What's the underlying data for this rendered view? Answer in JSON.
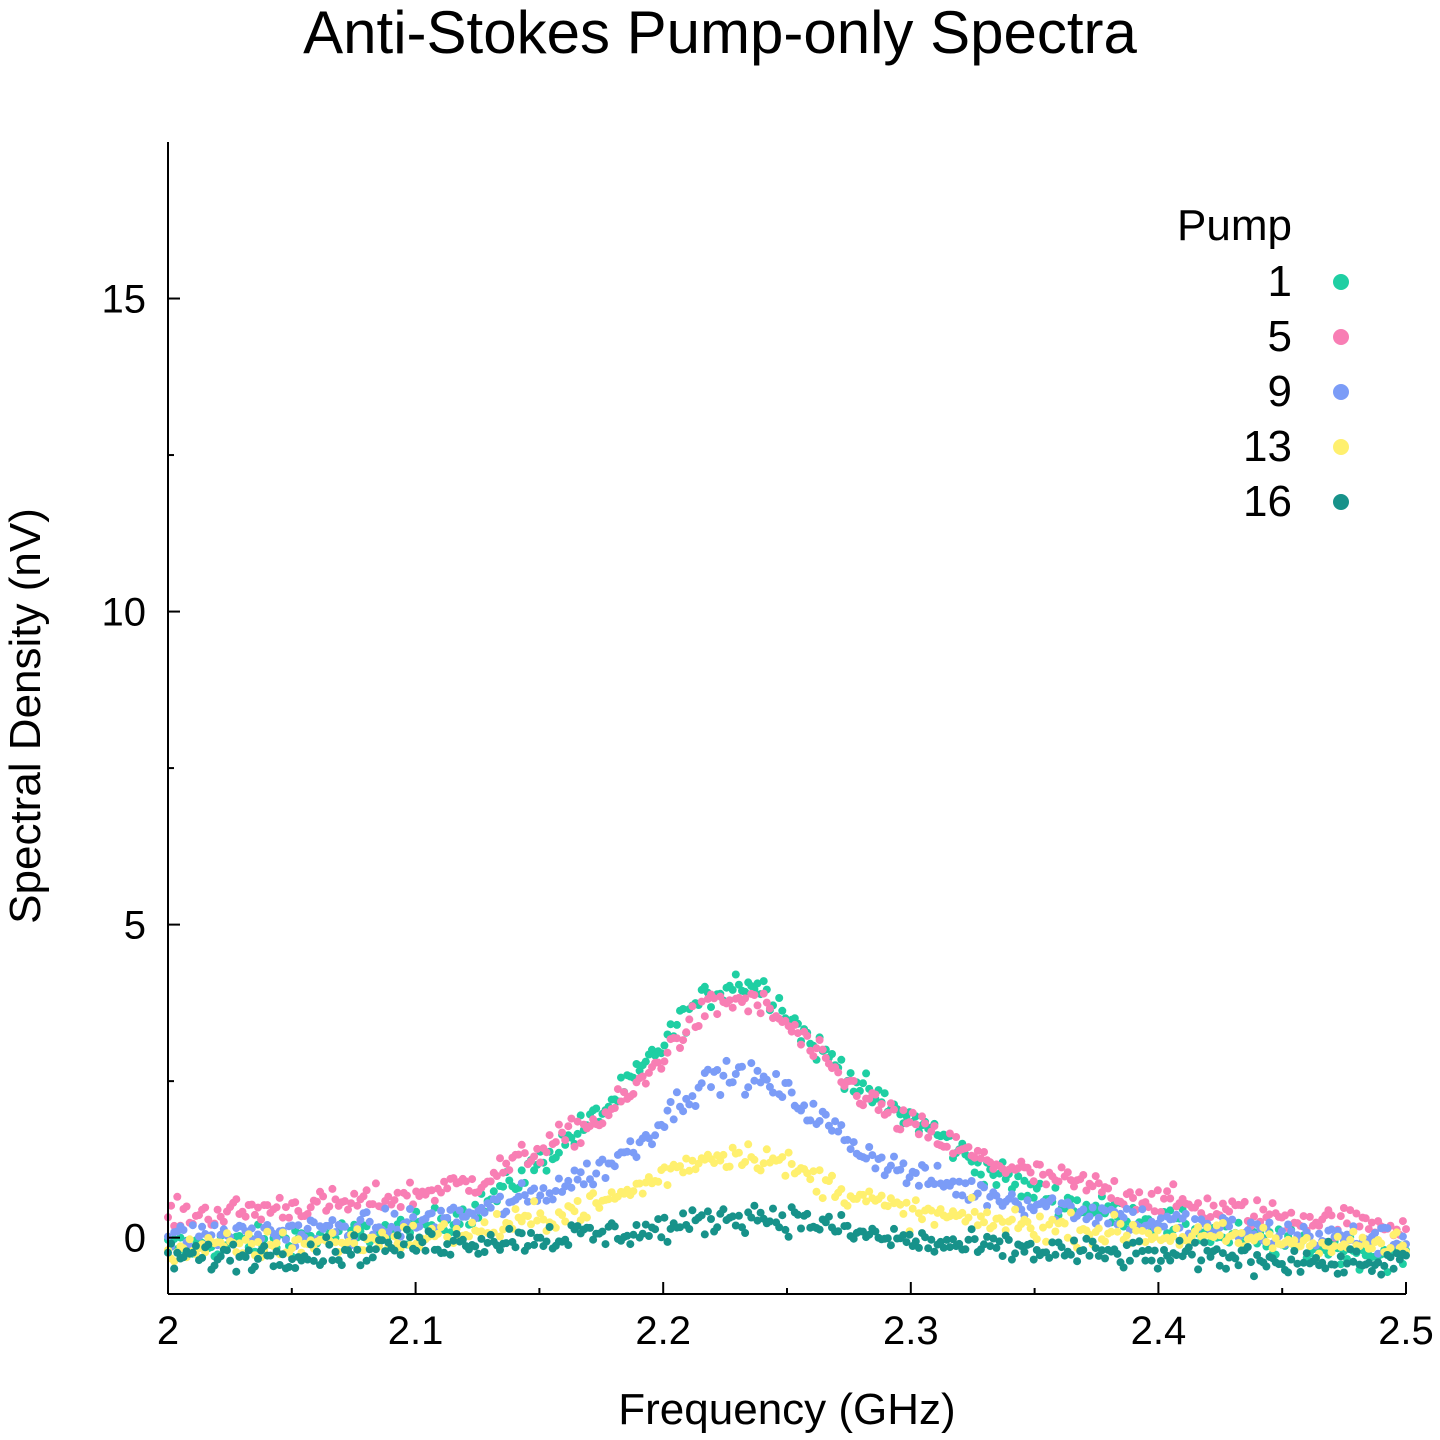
{
  "chart_data": {
    "type": "scatter",
    "title": "Anti-Stokes Pump-only Spectra",
    "xlabel": "Frequency (GHz)",
    "ylabel": "Spectral Density (nV)",
    "xlim": [
      2.0,
      2.5
    ],
    "ylim": [
      -0.9,
      17.5
    ],
    "xticks": [
      "2",
      "2.1",
      "2.2",
      "2.3",
      "2.4",
      "2.5"
    ],
    "xtick_values": [
      2.0,
      2.1,
      2.2,
      2.3,
      2.4,
      2.5
    ],
    "yticks": [
      "0",
      "5",
      "10",
      "15"
    ],
    "ytick_values": [
      0,
      5,
      10,
      15
    ],
    "y_minor_ticks": [
      2.5,
      7.5,
      12.5
    ],
    "grid": false,
    "legend": {
      "title": "Pump",
      "placement": "top-right"
    },
    "series": [
      {
        "name": "1",
        "color": "#1fcfa3",
        "x": [
          2.0,
          2.025,
          2.05,
          2.075,
          2.1,
          2.125,
          2.15,
          2.175,
          2.19,
          2.2,
          2.21,
          2.22,
          2.23,
          2.24,
          2.25,
          2.26,
          2.27,
          2.28,
          2.29,
          2.3,
          2.31,
          2.325,
          2.35,
          2.375,
          2.4,
          2.425,
          2.45,
          2.475,
          2.5
        ],
        "y": [
          -0.15,
          -0.1,
          0.0,
          0.05,
          0.15,
          0.45,
          1.2,
          2.0,
          2.6,
          3.1,
          3.6,
          3.9,
          4.1,
          4.0,
          3.6,
          3.1,
          2.8,
          2.4,
          2.1,
          1.9,
          1.7,
          1.2,
          0.7,
          0.45,
          0.25,
          0.05,
          -0.1,
          -0.2,
          -0.3
        ]
      },
      {
        "name": "5",
        "color": "#f87eb4",
        "x": [
          2.0,
          2.025,
          2.05,
          2.075,
          2.1,
          2.125,
          2.15,
          2.175,
          2.19,
          2.2,
          2.21,
          2.22,
          2.23,
          2.24,
          2.25,
          2.26,
          2.27,
          2.28,
          2.29,
          2.3,
          2.31,
          2.325,
          2.35,
          2.375,
          2.4,
          2.425,
          2.45,
          2.475,
          2.5
        ],
        "y": [
          0.35,
          0.4,
          0.5,
          0.55,
          0.7,
          0.9,
          1.4,
          1.9,
          2.4,
          2.9,
          3.4,
          3.7,
          3.8,
          3.7,
          3.4,
          3.0,
          2.6,
          2.3,
          2.0,
          1.8,
          1.6,
          1.3,
          1.0,
          0.8,
          0.6,
          0.45,
          0.35,
          0.25,
          0.2
        ]
      },
      {
        "name": "9",
        "color": "#7b9cf7",
        "x": [
          2.0,
          2.025,
          2.05,
          2.075,
          2.1,
          2.125,
          2.15,
          2.175,
          2.19,
          2.2,
          2.21,
          2.22,
          2.23,
          2.24,
          2.25,
          2.26,
          2.27,
          2.28,
          2.29,
          2.3,
          2.31,
          2.325,
          2.35,
          2.375,
          2.4,
          2.425,
          2.45,
          2.475,
          2.5
        ],
        "y": [
          0.0,
          0.05,
          0.1,
          0.15,
          0.25,
          0.4,
          0.7,
          1.1,
          1.5,
          1.9,
          2.3,
          2.55,
          2.6,
          2.5,
          2.3,
          2.0,
          1.7,
          1.4,
          1.2,
          1.0,
          0.9,
          0.75,
          0.55,
          0.4,
          0.25,
          0.15,
          0.05,
          0.0,
          -0.05
        ]
      },
      {
        "name": "13",
        "color": "#fff06e",
        "x": [
          2.0,
          2.025,
          2.05,
          2.075,
          2.1,
          2.125,
          2.15,
          2.175,
          2.19,
          2.2,
          2.21,
          2.22,
          2.23,
          2.24,
          2.25,
          2.26,
          2.27,
          2.28,
          2.29,
          2.3,
          2.31,
          2.325,
          2.35,
          2.375,
          2.4,
          2.425,
          2.45,
          2.475,
          2.5
        ],
        "y": [
          -0.2,
          -0.15,
          -0.1,
          -0.05,
          0.0,
          0.1,
          0.3,
          0.55,
          0.8,
          1.0,
          1.2,
          1.3,
          1.35,
          1.3,
          1.15,
          0.95,
          0.8,
          0.65,
          0.5,
          0.4,
          0.35,
          0.3,
          0.2,
          0.1,
          0.05,
          0.0,
          -0.05,
          -0.1,
          -0.15
        ]
      },
      {
        "name": "16",
        "color": "#17928a",
        "x": [
          2.0,
          2.025,
          2.05,
          2.075,
          2.1,
          2.125,
          2.15,
          2.175,
          2.19,
          2.2,
          2.21,
          2.22,
          2.23,
          2.24,
          2.25,
          2.26,
          2.27,
          2.28,
          2.29,
          2.3,
          2.31,
          2.325,
          2.35,
          2.375,
          2.4,
          2.425,
          2.45,
          2.475,
          2.5
        ],
        "y": [
          -0.3,
          -0.3,
          -0.25,
          -0.2,
          -0.1,
          -0.05,
          0.0,
          0.05,
          0.1,
          0.15,
          0.2,
          0.3,
          0.35,
          0.35,
          0.3,
          0.25,
          0.15,
          0.05,
          0.0,
          -0.05,
          -0.1,
          -0.15,
          -0.2,
          -0.25,
          -0.3,
          -0.3,
          -0.35,
          -0.4,
          -0.4
        ]
      }
    ]
  }
}
